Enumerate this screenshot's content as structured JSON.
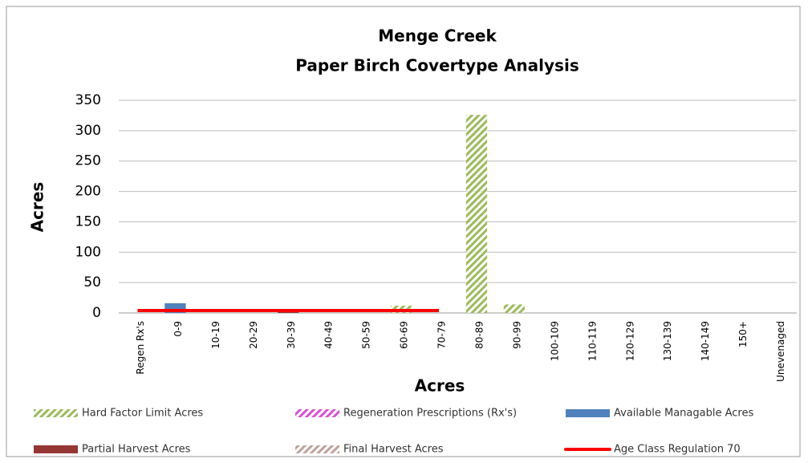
{
  "chart_data": {
    "type": "bar",
    "stacked": true,
    "title": "Menge Creek",
    "subtitle": "Paper Birch Covertype Analysis",
    "y_label": "Acres",
    "x_label": "Acres",
    "categories": [
      "Regen Rx's",
      "0-9",
      "10-19",
      "20-29",
      "30-39",
      "40-49",
      "50-59",
      "60-69",
      "70-79",
      "80-89",
      "90-99",
      "100-109",
      "110-119",
      "120-129",
      "130-139",
      "140-149",
      "150+",
      "Unevenaged"
    ],
    "ylim": [
      0,
      350
    ],
    "yticks": [
      0,
      50,
      100,
      150,
      200,
      250,
      300,
      350
    ],
    "grid": true,
    "series": [
      {
        "name": "Hard Factor Limit Acres",
        "color": "#9bbb59",
        "pattern": "hatch",
        "values": [
          0,
          0,
          0,
          0,
          0,
          0,
          0,
          12,
          0,
          326,
          14,
          0,
          0,
          0,
          0,
          0,
          0,
          0
        ]
      },
      {
        "name": "Regeneration Prescriptions (Rx's)",
        "color": "#d84fd8",
        "pattern": "hatch",
        "values": [
          0,
          0,
          0,
          0,
          0,
          0,
          0,
          0,
          0,
          0,
          0,
          0,
          0,
          0,
          0,
          0,
          0,
          0
        ]
      },
      {
        "name": "Available Managable Acres",
        "color": "#4f81bd",
        "pattern": "solid",
        "values": [
          0,
          16,
          0,
          0,
          0,
          0,
          0,
          0,
          0,
          0,
          0,
          0,
          0,
          0,
          0,
          0,
          0,
          0
        ]
      },
      {
        "name": "Partial Harvest Acres",
        "color": "#953735",
        "pattern": "solid",
        "values": [
          0,
          0,
          0,
          0,
          6,
          0,
          0,
          0,
          0,
          0,
          0,
          0,
          0,
          0,
          0,
          0,
          0,
          0
        ]
      },
      {
        "name": "Final Harvest Acres",
        "color": "#c0a09a",
        "pattern": "hatch",
        "values": [
          0,
          0,
          0,
          0,
          0,
          0,
          0,
          0,
          0,
          0,
          0,
          0,
          0,
          0,
          0,
          0,
          0,
          0
        ]
      },
      {
        "name": "Age Class Regulation 70",
        "color": "#ff0000",
        "type": "line",
        "values": [
          4,
          4,
          4,
          4,
          4,
          4,
          4,
          4,
          4,
          null,
          null,
          null,
          null,
          null,
          null,
          null,
          null,
          null
        ]
      }
    ]
  }
}
